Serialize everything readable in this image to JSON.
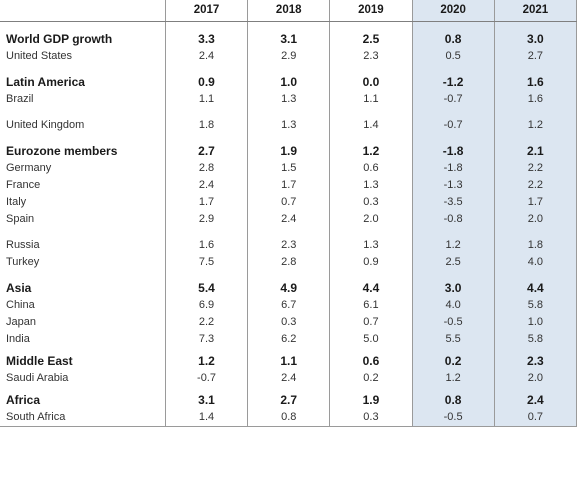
{
  "table": {
    "columns": [
      "2017",
      "2018",
      "2019",
      "2020",
      "2021"
    ],
    "rows": [
      {
        "label": "World GDP growth",
        "bold": true,
        "values": [
          "3.3",
          "3.1",
          "2.5",
          "0.8",
          "3.0"
        ]
      },
      {
        "label": "United States",
        "bold": false,
        "values": [
          "2.4",
          "2.9",
          "2.3",
          "0.5",
          "2.7"
        ]
      },
      {
        "label": "Latin America",
        "bold": true,
        "values": [
          "0.9",
          "1.0",
          "0.0",
          "-1.2",
          "1.6"
        ]
      },
      {
        "label": "Brazil",
        "bold": false,
        "values": [
          "1.1",
          "1.3",
          "1.1",
          "-0.7",
          "1.6"
        ]
      },
      {
        "label": "United Kingdom",
        "bold": false,
        "values": [
          "1.8",
          "1.3",
          "1.4",
          "-0.7",
          "1.2"
        ]
      },
      {
        "label": "Eurozone members",
        "bold": true,
        "values": [
          "2.7",
          "1.9",
          "1.2",
          "-1.8",
          "2.1"
        ]
      },
      {
        "label": "Germany",
        "bold": false,
        "values": [
          "2.8",
          "1.5",
          "0.6",
          "-1.8",
          "2.2"
        ]
      },
      {
        "label": "France",
        "bold": false,
        "values": [
          "2.4",
          "1.7",
          "1.3",
          "-1.3",
          "2.2"
        ]
      },
      {
        "label": "Italy",
        "bold": false,
        "values": [
          "1.7",
          "0.7",
          "0.3",
          "-3.5",
          "1.7"
        ]
      },
      {
        "label": "Spain",
        "bold": false,
        "values": [
          "2.9",
          "2.4",
          "2.0",
          "-0.8",
          "2.0"
        ]
      },
      {
        "label": "Russia",
        "bold": false,
        "values": [
          "1.6",
          "2.3",
          "1.3",
          "1.2",
          "1.8"
        ]
      },
      {
        "label": "Turkey",
        "bold": false,
        "values": [
          "7.5",
          "2.8",
          "0.9",
          "2.5",
          "4.0"
        ]
      },
      {
        "label": "Asia",
        "bold": true,
        "values": [
          "5.4",
          "4.9",
          "4.4",
          "3.0",
          "4.4"
        ]
      },
      {
        "label": "China",
        "bold": false,
        "values": [
          "6.9",
          "6.7",
          "6.1",
          "4.0",
          "5.8"
        ]
      },
      {
        "label": "Japan",
        "bold": false,
        "values": [
          "2.2",
          "0.3",
          "0.7",
          "-0.5",
          "1.0"
        ]
      },
      {
        "label": "India",
        "bold": false,
        "values": [
          "7.3",
          "6.2",
          "5.0",
          "5.5",
          "5.8"
        ]
      },
      {
        "label": "Middle East",
        "bold": true,
        "values": [
          "1.2",
          "1.1",
          "0.6",
          "0.2",
          "2.3"
        ]
      },
      {
        "label": "Saudi Arabia",
        "bold": false,
        "values": [
          "-0.7",
          "2.4",
          "0.2",
          "1.2",
          "2.0"
        ]
      },
      {
        "label": "Africa",
        "bold": true,
        "values": [
          "3.1",
          "2.7",
          "1.9",
          "0.8",
          "2.4"
        ]
      },
      {
        "label": "South Africa",
        "bold": false,
        "values": [
          "1.4",
          "0.8",
          "0.3",
          "-0.5",
          "0.7"
        ]
      }
    ],
    "projection_color": "#dce6f1",
    "line_color": "#9a9a9a"
  }
}
